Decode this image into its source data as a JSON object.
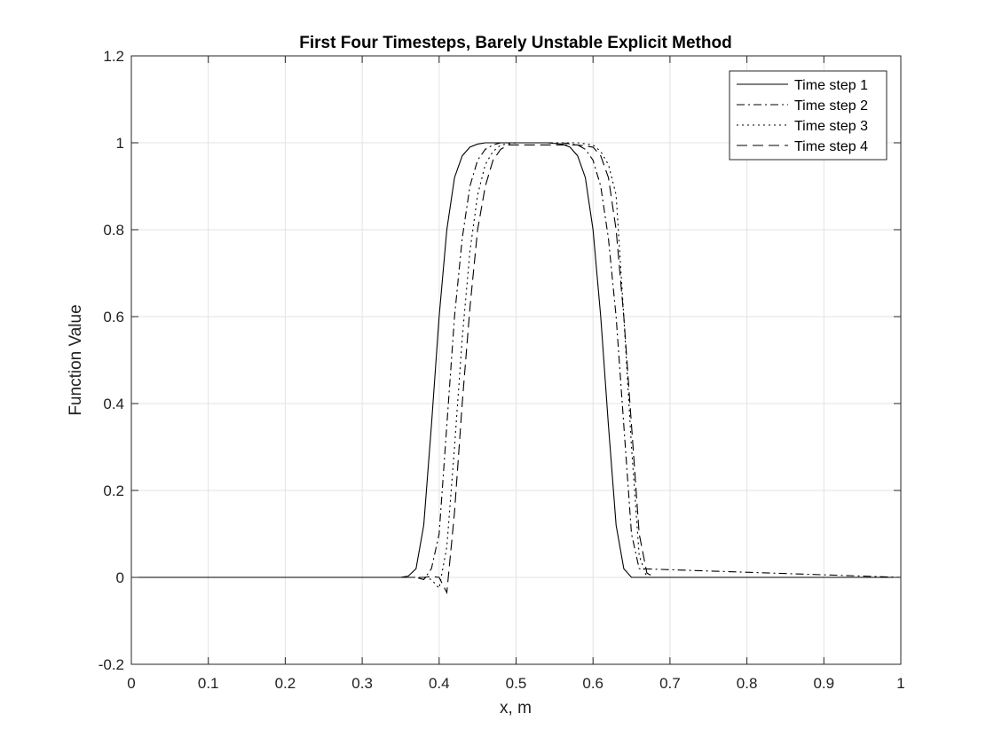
{
  "chart_data": {
    "type": "line",
    "title": "First Four Timesteps, Barely Unstable Explicit Method",
    "xlabel": "x, m",
    "ylabel": "Function Value",
    "xlim": [
      0,
      1
    ],
    "ylim": [
      -0.2,
      1.2
    ],
    "xticks": [
      0,
      0.1,
      0.2,
      0.3,
      0.4,
      0.5,
      0.6,
      0.7,
      0.8,
      0.9,
      1
    ],
    "xtick_labels": [
      "0",
      "0.1",
      "0.2",
      "0.3",
      "0.4",
      "0.5",
      "0.6",
      "0.7",
      "0.8",
      "0.9",
      "1"
    ],
    "yticks": [
      -0.2,
      0,
      0.2,
      0.4,
      0.6,
      0.8,
      1,
      1.2
    ],
    "ytick_labels": [
      "-0.2",
      "0",
      "0.2",
      "0.4",
      "0.6",
      "0.8",
      "1",
      "1.2"
    ],
    "grid": true,
    "legend_location": "top-right",
    "series": [
      {
        "name": "Time step 1",
        "linestyle": "solid",
        "x": [
          0,
          0.35,
          0.36,
          0.37,
          0.38,
          0.39,
          0.4,
          0.41,
          0.42,
          0.43,
          0.44,
          0.45,
          0.46,
          0.48,
          0.5,
          0.52,
          0.54,
          0.56,
          0.57,
          0.58,
          0.59,
          0.6,
          0.61,
          0.62,
          0.63,
          0.64,
          0.65,
          1
        ],
        "y": [
          0,
          0,
          0.003,
          0.02,
          0.12,
          0.35,
          0.6,
          0.8,
          0.92,
          0.97,
          0.99,
          0.997,
          1,
          1,
          1,
          1,
          1,
          0.997,
          0.99,
          0.97,
          0.92,
          0.8,
          0.6,
          0.35,
          0.12,
          0.02,
          0,
          0
        ],
        "color": "#000000"
      },
      {
        "name": "Time step 2",
        "linestyle": "dashdot",
        "x": [
          0,
          0.37,
          0.38,
          0.39,
          0.4,
          0.41,
          0.42,
          0.43,
          0.44,
          0.45,
          0.46,
          0.47,
          0.48,
          0.5,
          0.52,
          0.54,
          0.56,
          0.58,
          0.59,
          0.6,
          0.61,
          0.62,
          0.63,
          0.64,
          0.65,
          0.66,
          1
        ],
        "y": [
          0,
          0,
          -0.005,
          0.02,
          0.1,
          0.35,
          0.6,
          0.78,
          0.9,
          0.96,
          0.985,
          0.995,
          1,
          1,
          1,
          1,
          1,
          0.995,
          0.985,
          0.96,
          0.9,
          0.78,
          0.6,
          0.35,
          0.1,
          0.02,
          0
        ],
        "color": "#000000"
      },
      {
        "name": "Time step 3",
        "linestyle": "dotted",
        "x": [
          0,
          0.38,
          0.39,
          0.4,
          0.41,
          0.42,
          0.43,
          0.44,
          0.45,
          0.46,
          0.47,
          0.48,
          0.5,
          0.52,
          0.54,
          0.56,
          0.58,
          0.6,
          0.61,
          0.62,
          0.63,
          0.64,
          0.65,
          0.66,
          0.67,
          1
        ],
        "y": [
          0,
          0,
          -0.005,
          -0.025,
          0.07,
          0.3,
          0.55,
          0.75,
          0.88,
          0.95,
          0.98,
          0.995,
          1,
          1,
          1,
          1,
          1,
          0.995,
          0.98,
          0.95,
          0.88,
          0.6,
          0.3,
          0.05,
          0,
          0
        ],
        "color": "#000000"
      },
      {
        "name": "Time step 4",
        "linestyle": "dashed",
        "x": [
          0,
          0.38,
          0.39,
          0.4,
          0.41,
          0.42,
          0.43,
          0.44,
          0.45,
          0.46,
          0.47,
          0.48,
          0.49,
          0.5,
          0.53,
          0.56,
          0.58,
          0.6,
          0.61,
          0.62,
          0.63,
          0.64,
          0.65,
          0.66,
          0.67,
          0.68,
          1
        ],
        "y": [
          0,
          0,
          0.002,
          0,
          -0.035,
          0.15,
          0.4,
          0.62,
          0.8,
          0.9,
          0.96,
          0.985,
          0.995,
          0.995,
          0.995,
          0.995,
          0.995,
          0.99,
          0.97,
          0.92,
          0.8,
          0.6,
          0.35,
          0.1,
          0.01,
          0,
          0
        ],
        "color": "#000000"
      }
    ]
  }
}
